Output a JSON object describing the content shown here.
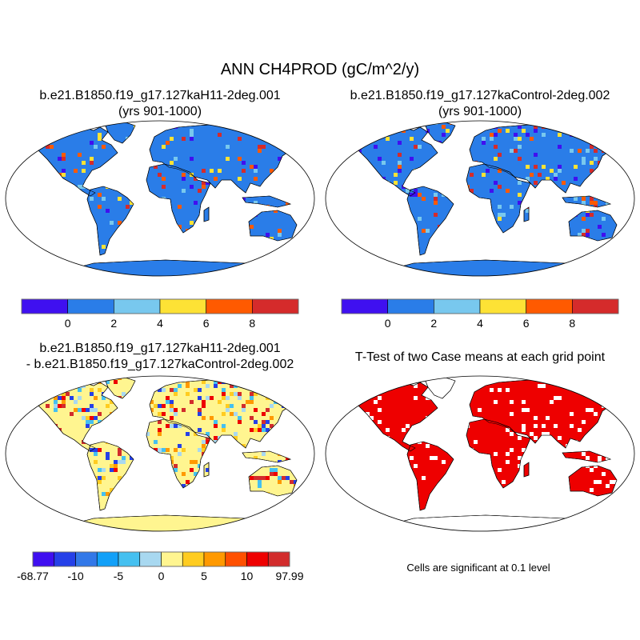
{
  "figure": {
    "title": "ANN CH4PROD (gC/m^2/y)"
  },
  "panels": [
    {
      "id": "case1",
      "title_line1": "b.e21.B1850.f19_g17.127kaH11-2deg.001",
      "title_line2": "(yrs 901-1000)",
      "land_color": "#2a7de8",
      "cell_colors": [
        "#d52b2b",
        "#ff5a00",
        "#fde235",
        "#78c8ee",
        "#3f10f0"
      ]
    },
    {
      "id": "case2",
      "title_line1": "b.e21.B1850.f19_g17.127kaControl-2deg.002",
      "title_line2": "(yrs 901-1000)",
      "land_color": "#2a7de8",
      "cell_colors": [
        "#d52b2b",
        "#ff5a00",
        "#fde235",
        "#78c8ee",
        "#3f10f0"
      ]
    },
    {
      "id": "difference",
      "title_line1": "b.e21.B1850.f19_g17.127kaH11-2deg.001",
      "title_line2": "- b.e21.B1850.f19_g17.127kaControl-2deg.002",
      "land_color": "#fff590",
      "cell_colors": [
        "#a8d8f0",
        "#45c0f0",
        "#ffcc20",
        "#ff9900",
        "#d22c2c",
        "#2540e8",
        "#ee0000"
      ]
    },
    {
      "id": "ttest",
      "title_line1": "T-Test of two Case means at each grid point",
      "land_color": "#ee0000",
      "cell_colors": [
        "#ffffff"
      ],
      "footnote": "Cells are significant at 0.1 level"
    }
  ],
  "colorbars": {
    "case": {
      "colors": [
        "#3f10f0",
        "#2a7de8",
        "#78c8ee",
        "#fde235",
        "#ff5a00",
        "#d52b2b"
      ],
      "labels": [
        "0",
        "2",
        "4",
        "6",
        "8"
      ]
    },
    "difference": {
      "colors": [
        "#3f0ff0",
        "#2540e8",
        "#3278e8",
        "#12a0f8",
        "#45c0f0",
        "#a8d8f0",
        "#fff590",
        "#ffcc20",
        "#ff9900",
        "#ff5000",
        "#ee0000",
        "#d22c2c"
      ],
      "labels": [
        "-68.77",
        "-10",
        "-5",
        "0",
        "5",
        "10",
        "97.99"
      ]
    }
  }
}
